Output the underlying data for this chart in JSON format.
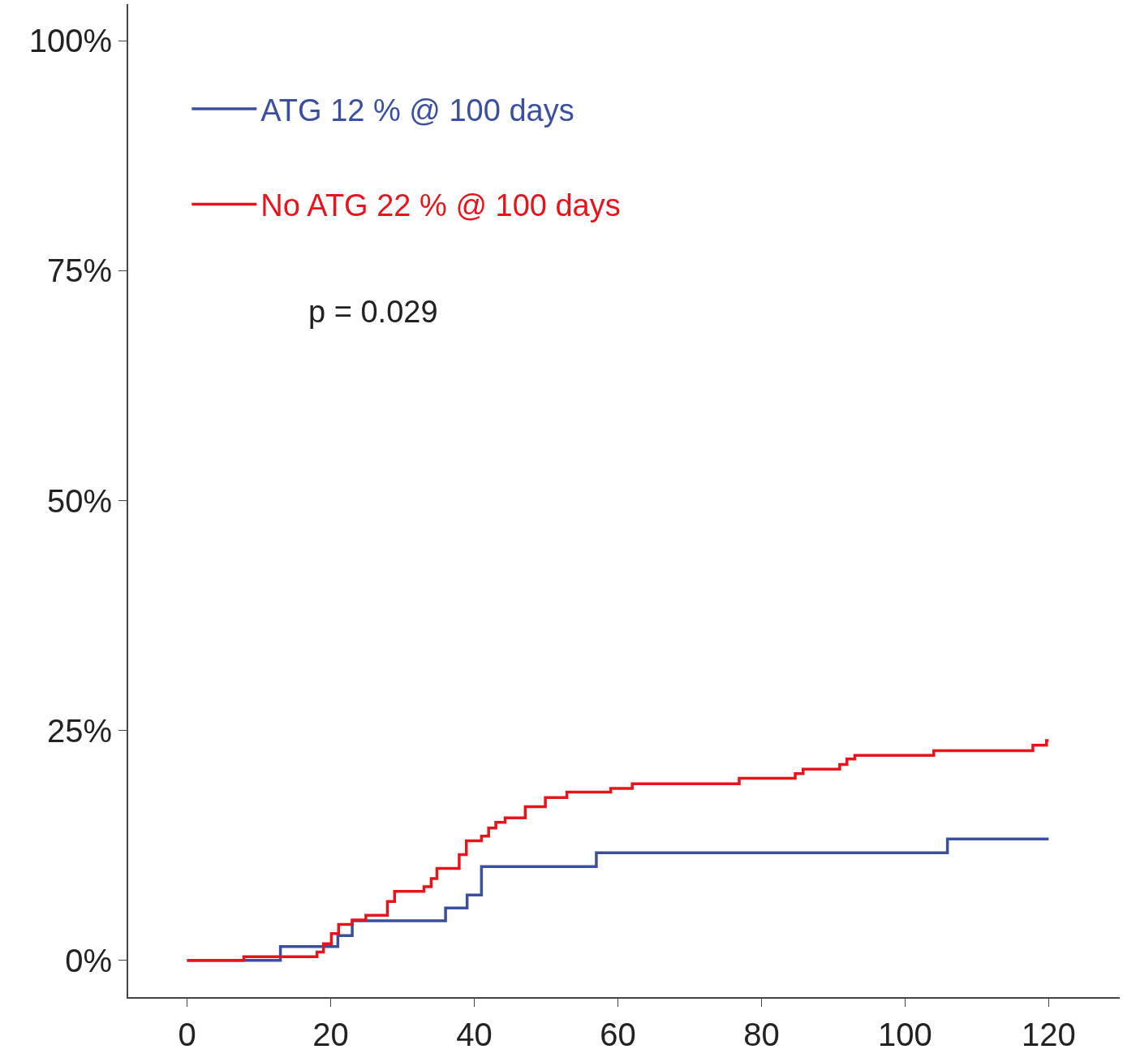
{
  "chart_data": {
    "type": "step",
    "xlim": [
      -8.2,
      129.9
    ],
    "xticks": [
      0,
      20,
      40,
      60,
      80,
      100,
      120
    ],
    "ylim": [
      -4,
      104
    ],
    "yticks": [
      {
        "value": 0,
        "label": "0%"
      },
      {
        "value": 25,
        "label": "25%"
      },
      {
        "value": 50,
        "label": "50%"
      },
      {
        "value": 75,
        "label": "75%"
      },
      {
        "value": 100,
        "label": "100%"
      }
    ],
    "legend": "top left",
    "marker": "none",
    "line_style": "solid",
    "annotations": [
      "p = 0.029"
    ],
    "series": [
      {
        "name": "ATG 12 % @ 100 days",
        "color": "#3a4fa0",
        "x": [
          0,
          13,
          21,
          23,
          36,
          39,
          41,
          57,
          105.9,
          120
        ],
        "values": [
          0,
          1.5,
          2.7,
          4.3,
          5.7,
          7.1,
          10.2,
          11.7,
          13.2,
          13.2
        ]
      },
      {
        "name": "No ATG 22 % @ 100 days",
        "color": "#e8141c",
        "x": [
          0,
          7.9,
          18.1,
          19,
          20.1,
          21.1,
          23,
          24.9,
          27.9,
          28.9,
          33,
          34,
          34.8,
          37.9,
          38.9,
          41,
          42,
          43,
          44.3,
          47.1,
          49.9,
          52.9,
          59,
          62,
          76.9,
          84.7,
          85.8,
          90.9,
          91.9,
          93,
          104,
          117.8,
          119.7,
          120
        ],
        "values": [
          0,
          0.4,
          0.9,
          1.8,
          2.9,
          3.9,
          4.4,
          4.9,
          6.4,
          7.5,
          8,
          8.9,
          10,
          11.5,
          13,
          13.5,
          14.4,
          15,
          15.5,
          16.7,
          17.7,
          18.3,
          18.7,
          19.2,
          19.8,
          20.3,
          20.8,
          21.3,
          21.9,
          22.3,
          22.8,
          23.4,
          23.9,
          23.9
        ]
      }
    ]
  }
}
